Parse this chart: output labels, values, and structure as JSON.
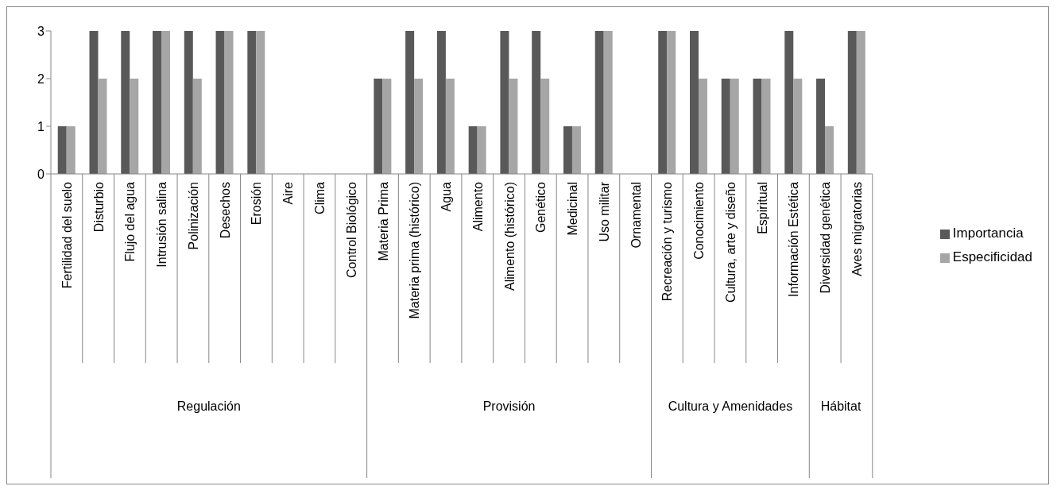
{
  "chart_data": {
    "type": "bar",
    "categories": [
      "Fertilidad del suelo",
      "Disturbio",
      "Flujo del agua",
      "Intrusión salina",
      "Polinización",
      "Desechos",
      "Erosión",
      "Aire",
      "Clima",
      "Control Biológico",
      "Materia Prima",
      "Materia prima (histórico)",
      "Agua",
      "Alimento",
      "Alimento (histórico)",
      "Genético",
      "Medicinal",
      "Uso militar",
      "Ornamental",
      "Recreación y turismo",
      "Conocimiento",
      "Cultura, arte y diseño",
      "Espiritual",
      "Información Estética",
      "Diversidad genética",
      "Aves migratorias"
    ],
    "series": [
      {
        "name": "Importancia",
        "color": "#595959",
        "values": [
          1,
          3,
          3,
          3,
          3,
          3,
          3,
          0,
          0,
          0,
          2,
          3,
          3,
          1,
          3,
          3,
          1,
          3,
          0,
          3,
          3,
          2,
          2,
          3,
          2,
          3
        ]
      },
      {
        "name": "Especificidad",
        "color": "#a6a6a6",
        "values": [
          1,
          2,
          2,
          3,
          2,
          3,
          3,
          0,
          0,
          0,
          2,
          2,
          2,
          1,
          2,
          2,
          1,
          3,
          0,
          3,
          2,
          2,
          2,
          2,
          1,
          3
        ]
      }
    ],
    "annotations": [
      "Regulación",
      "Provisión",
      "Cultura y Amenidades",
      "Hábitat"
    ],
    "ylim": [
      0,
      3
    ],
    "yticks": [
      0,
      1,
      2,
      3
    ],
    "grid": false,
    "legend": "right"
  }
}
